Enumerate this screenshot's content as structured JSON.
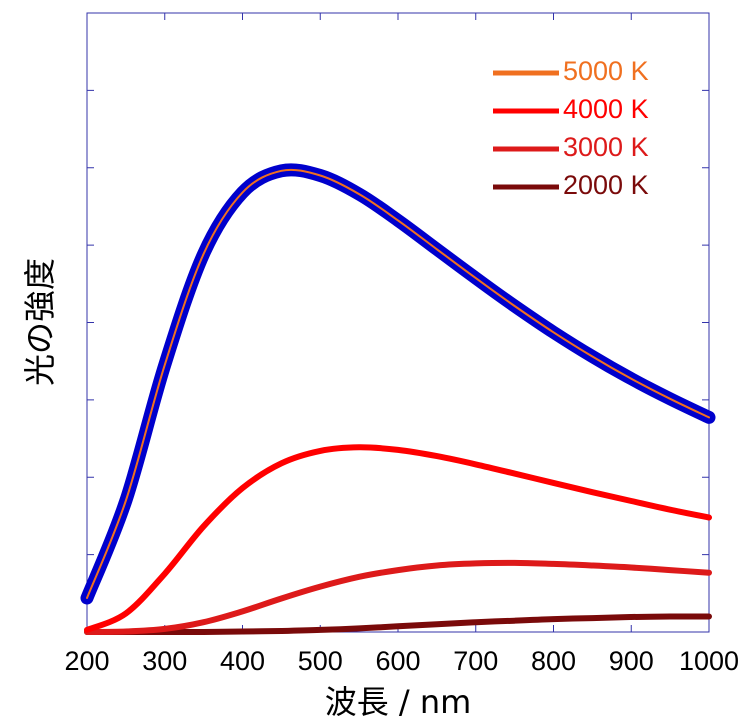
{
  "chart_data": {
    "type": "line",
    "xlabel": "波長 / nm",
    "ylabel": "光の強度",
    "xlim": [
      200,
      1000
    ],
    "ylim": [
      0,
      1.2
    ],
    "xticks": [
      200,
      300,
      400,
      500,
      600,
      700,
      800,
      900,
      1000
    ],
    "yticks": [
      0,
      0.15,
      0.3,
      0.45,
      0.6,
      0.75,
      0.9,
      1.05,
      1.2
    ],
    "show_y_tick_labels": false,
    "grid": false,
    "legend_position": "top-right",
    "highlight": {
      "series": "5000 K",
      "color": "#0000cc"
    },
    "x": [
      200,
      250,
      300,
      350,
      400,
      450,
      500,
      550,
      600,
      650,
      700,
      750,
      800,
      850,
      900,
      950,
      1000
    ],
    "series": [
      {
        "name": "5000 K",
        "color": "#f07020",
        "values": [
          0.066,
          0.255,
          0.518,
          0.733,
          0.852,
          0.894,
          0.885,
          0.849,
          0.798,
          0.742,
          0.686,
          0.632,
          0.581,
          0.534,
          0.491,
          0.452,
          0.416
        ]
      },
      {
        "name": "4000 K",
        "color": "#ff0000",
        "values": [
          0.004,
          0.036,
          0.113,
          0.205,
          0.279,
          0.327,
          0.351,
          0.358,
          0.353,
          0.341,
          0.325,
          0.307,
          0.289,
          0.271,
          0.254,
          0.237,
          0.222
        ]
      },
      {
        "name": "3000 K",
        "color": "#dd1a1a",
        "values": [
          0.0,
          0.001,
          0.006,
          0.019,
          0.04,
          0.065,
          0.088,
          0.107,
          0.12,
          0.129,
          0.133,
          0.134,
          0.132,
          0.129,
          0.125,
          0.12,
          0.115
        ]
      },
      {
        "name": "2000 K",
        "color": "#7a0a0a",
        "values": [
          0.0,
          0.0,
          0.0,
          0.0,
          0.001,
          0.002,
          0.004,
          0.007,
          0.011,
          0.015,
          0.019,
          0.022,
          0.025,
          0.027,
          0.029,
          0.03,
          0.03
        ]
      }
    ]
  }
}
